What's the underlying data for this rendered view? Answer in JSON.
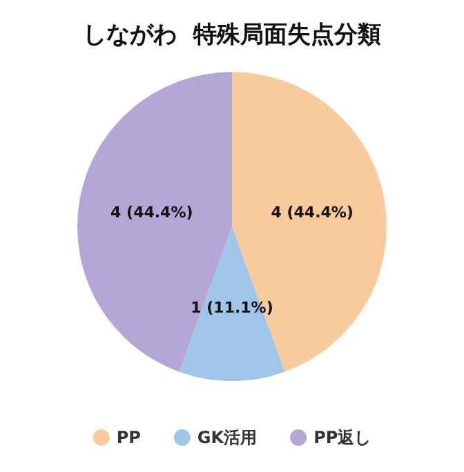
{
  "chart_data": {
    "type": "pie",
    "title": "しながわ  特殊局面失点分類",
    "categories": [
      "PP",
      "GK活用",
      "PP返し"
    ],
    "values": [
      4,
      1,
      4
    ],
    "colors": [
      "#f9cb9c",
      "#9fc5e8",
      "#b4a7d6"
    ],
    "value_labels": [
      "4 (44.4%)",
      "1 (11.1%)",
      "4 (44.4%)"
    ],
    "legend": "bottom"
  }
}
